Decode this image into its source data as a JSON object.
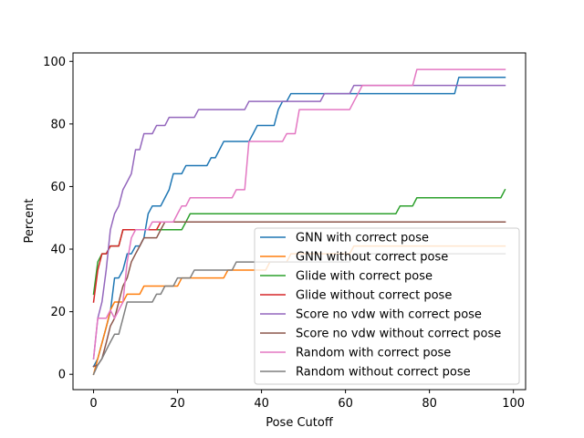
{
  "chart_data": {
    "type": "line",
    "title": "",
    "xlabel": "Pose Cutoff",
    "ylabel": "Percent",
    "xlim": [
      -4.9,
      102.9
    ],
    "ylim": [
      -4.9,
      102.7
    ],
    "xticks": [
      0,
      20,
      40,
      60,
      80,
      100
    ],
    "yticks": [
      0,
      20,
      40,
      60,
      80,
      100
    ],
    "grid": false,
    "legend_placement": "lower right",
    "series": [
      {
        "name": "GNN with correct pose",
        "color": "#1f77b4",
        "points": [
          [
            0,
            2.5
          ],
          [
            1,
            5
          ],
          [
            2,
            10
          ],
          [
            3,
            15
          ],
          [
            4,
            20
          ],
          [
            5,
            30.8
          ],
          [
            6,
            30.8
          ],
          [
            7,
            33.3
          ],
          [
            8,
            38.5
          ],
          [
            9,
            38.5
          ],
          [
            10,
            41
          ],
          [
            11,
            41
          ],
          [
            12,
            43.6
          ],
          [
            13,
            51.3
          ],
          [
            14,
            53.8
          ],
          [
            16,
            53.8
          ],
          [
            17,
            56.4
          ],
          [
            18,
            59
          ],
          [
            19,
            64.1
          ],
          [
            21,
            64.1
          ],
          [
            22,
            66.7
          ],
          [
            27,
            66.7
          ],
          [
            28,
            69.2
          ],
          [
            29,
            69.2
          ],
          [
            30,
            71.8
          ],
          [
            31,
            74.4
          ],
          [
            37,
            74.4
          ],
          [
            38,
            76.9
          ],
          [
            39,
            79.5
          ],
          [
            43,
            79.5
          ],
          [
            44,
            84.6
          ],
          [
            45,
            87.2
          ],
          [
            46,
            87.2
          ],
          [
            47,
            89.7
          ],
          [
            86,
            89.7
          ],
          [
            87,
            94.9
          ],
          [
            98,
            94.9
          ]
        ]
      },
      {
        "name": "GNN without correct pose",
        "color": "#ff7f0e",
        "points": [
          [
            0,
            0
          ],
          [
            1,
            5
          ],
          [
            2,
            10
          ],
          [
            3,
            15
          ],
          [
            4,
            20.5
          ],
          [
            5,
            23.1
          ],
          [
            7,
            23.1
          ],
          [
            8,
            25.6
          ],
          [
            11,
            25.6
          ],
          [
            12,
            28.2
          ],
          [
            20,
            28.2
          ],
          [
            21,
            30.8
          ],
          [
            31,
            30.8
          ],
          [
            32,
            33.3
          ],
          [
            41,
            33.3
          ],
          [
            42,
            35.9
          ],
          [
            46,
            35.9
          ],
          [
            47,
            38.5
          ],
          [
            61,
            38.5
          ],
          [
            62,
            41
          ],
          [
            98,
            41
          ]
        ]
      },
      {
        "name": "Glide with correct pose",
        "color": "#2ca02c",
        "points": [
          [
            0,
            25.6
          ],
          [
            1,
            35.9
          ],
          [
            2,
            38.5
          ],
          [
            3,
            38.5
          ],
          [
            4,
            41
          ],
          [
            6,
            41
          ],
          [
            7,
            46.2
          ],
          [
            21,
            46.2
          ],
          [
            22,
            48.7
          ],
          [
            23,
            51.3
          ],
          [
            72,
            51.3
          ],
          [
            73,
            53.8
          ],
          [
            76,
            53.8
          ],
          [
            77,
            56.4
          ],
          [
            97,
            56.4
          ],
          [
            98,
            59
          ]
        ]
      },
      {
        "name": "Glide without correct pose",
        "color": "#d62728",
        "points": [
          [
            0,
            23.1
          ],
          [
            1,
            33.3
          ],
          [
            2,
            38.5
          ],
          [
            3,
            38.5
          ],
          [
            4,
            41
          ],
          [
            6,
            41
          ],
          [
            7,
            46.2
          ],
          [
            15,
            46.2
          ],
          [
            16,
            48.7
          ],
          [
            98,
            48.7
          ]
        ]
      },
      {
        "name": "Score no vdw with correct pose",
        "color": "#9467bd",
        "points": [
          [
            0,
            5
          ],
          [
            1,
            17.9
          ],
          [
            2,
            23.1
          ],
          [
            3,
            33.3
          ],
          [
            4,
            46.2
          ],
          [
            5,
            51.3
          ],
          [
            6,
            53.8
          ],
          [
            7,
            59
          ],
          [
            8,
            61.5
          ],
          [
            9,
            64.1
          ],
          [
            10,
            71.8
          ],
          [
            11,
            71.8
          ],
          [
            12,
            76.9
          ],
          [
            14,
            76.9
          ],
          [
            15,
            79.5
          ],
          [
            17,
            79.5
          ],
          [
            18,
            82.1
          ],
          [
            24,
            82.1
          ],
          [
            25,
            84.6
          ],
          [
            36,
            84.6
          ],
          [
            37,
            87.2
          ],
          [
            54,
            87.2
          ],
          [
            55,
            89.7
          ],
          [
            61,
            89.7
          ],
          [
            62,
            92.3
          ],
          [
            98,
            92.3
          ]
        ]
      },
      {
        "name": "Score no vdw without correct pose",
        "color": "#8c564b",
        "points": [
          [
            0,
            2.5
          ],
          [
            1,
            3
          ],
          [
            2,
            5
          ],
          [
            3,
            10
          ],
          [
            4,
            15.4
          ],
          [
            5,
            17.9
          ],
          [
            6,
            23.1
          ],
          [
            7,
            28.2
          ],
          [
            8,
            30.8
          ],
          [
            9,
            35.9
          ],
          [
            10,
            38.5
          ],
          [
            11,
            41
          ],
          [
            12,
            43.6
          ],
          [
            15,
            43.6
          ],
          [
            16,
            46.2
          ],
          [
            17,
            48.7
          ],
          [
            98,
            48.7
          ]
        ]
      },
      {
        "name": "Random with correct pose",
        "color": "#e377c2",
        "points": [
          [
            0,
            5
          ],
          [
            1,
            17.9
          ],
          [
            3,
            17.9
          ],
          [
            4,
            20.5
          ],
          [
            5,
            17.9
          ],
          [
            6,
            20.5
          ],
          [
            7,
            23.1
          ],
          [
            8,
            35.9
          ],
          [
            9,
            43.6
          ],
          [
            10,
            46.2
          ],
          [
            13,
            46.2
          ],
          [
            14,
            48.7
          ],
          [
            19,
            48.7
          ],
          [
            20,
            51.3
          ],
          [
            21,
            53.8
          ],
          [
            22,
            53.8
          ],
          [
            23,
            56.4
          ],
          [
            33,
            56.4
          ],
          [
            34,
            59
          ],
          [
            36,
            59
          ],
          [
            37,
            74.4
          ],
          [
            45,
            74.4
          ],
          [
            46,
            76.9
          ],
          [
            48,
            76.9
          ],
          [
            49,
            84.6
          ],
          [
            61,
            84.6
          ],
          [
            62,
            87.2
          ],
          [
            63,
            89.7
          ],
          [
            64,
            92.3
          ],
          [
            76,
            92.3
          ],
          [
            77,
            97.4
          ],
          [
            98,
            97.4
          ]
        ]
      },
      {
        "name": "Random without correct pose",
        "color": "#7f7f7f",
        "points": [
          [
            0,
            0
          ],
          [
            1,
            3
          ],
          [
            2,
            5
          ],
          [
            3,
            7.7
          ],
          [
            4,
            10.3
          ],
          [
            5,
            12.8
          ],
          [
            6,
            12.8
          ],
          [
            7,
            17.9
          ],
          [
            8,
            23.1
          ],
          [
            14,
            23.1
          ],
          [
            15,
            25.6
          ],
          [
            16,
            25.6
          ],
          [
            17,
            28.2
          ],
          [
            19,
            28.2
          ],
          [
            20,
            30.8
          ],
          [
            23,
            30.8
          ],
          [
            24,
            33.3
          ],
          [
            33,
            33.3
          ],
          [
            34,
            35.9
          ],
          [
            61,
            35.9
          ],
          [
            62,
            38.5
          ],
          [
            98,
            38.5
          ]
        ]
      }
    ]
  }
}
